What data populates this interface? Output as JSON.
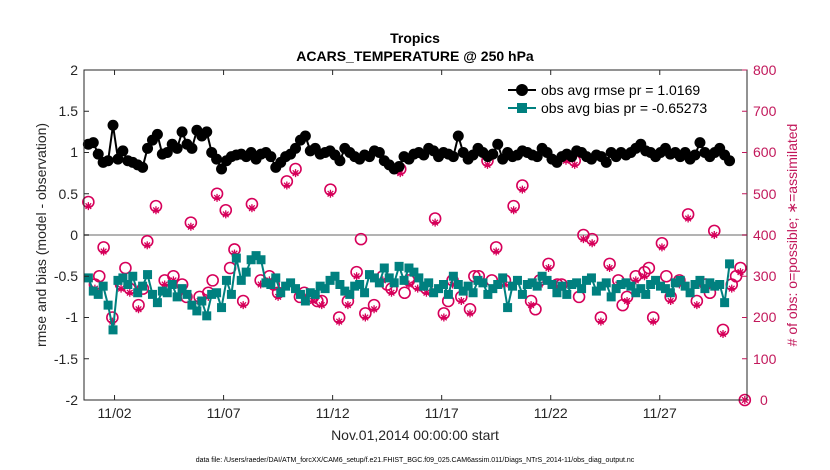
{
  "chart_data": {
    "type": "line",
    "title": "Tropics",
    "subtitle": "ACARS_TEMPERATURE @ 250 hPa",
    "xlabel": "Nov.01,2014 00:00:00 start",
    "ylabel_left": "rmse and bias (model - observation)",
    "ylabel_right": "# of obs: o=possible; ∗=assimilated",
    "footnote": "data file: /Users/raeder/DAI/ATM_forcXX/CAM6_setup/f.e21.FHIST_BGC.f09_025.CAM6assim.011/Diags_NTrS_2014-11/obs_diag_output.nc",
    "xlim": [
      0.6,
      31.0
    ],
    "ylim_left": [
      -2,
      2
    ],
    "ylim_right": [
      0,
      800
    ],
    "x_ticks": [
      2,
      7,
      12,
      17,
      22,
      27
    ],
    "x_tick_labels": [
      "11/02",
      "11/07",
      "11/12",
      "11/17",
      "11/22",
      "11/27"
    ],
    "y_left_ticks": [
      "2",
      "1.5",
      "1",
      "0.5",
      "0",
      "-0.5",
      "-1",
      "-1.5",
      "-2"
    ],
    "y_right_ticks": [
      "800",
      "700",
      "600",
      "500",
      "400",
      "300",
      "200",
      "100",
      "0"
    ],
    "legend": {
      "placement": "top-right",
      "entries": [
        "obs avg rmse pr = 1.0169",
        "obs avg bias pr = -0.65273"
      ]
    },
    "colors": {
      "rmse": "#000000",
      "bias": "#00807f",
      "nobs": "#d6005a",
      "zero_line": "#b3b3b3",
      "right_axis": "#c2185b"
    },
    "series": [
      {
        "name": "obs avg rmse pr",
        "axis": "left",
        "values": [
          1.1,
          1.12,
          0.98,
          0.88,
          0.9,
          1.33,
          0.92,
          1.02,
          0.9,
          0.88,
          0.85,
          0.82,
          1.05,
          1.15,
          1.22,
          0.98,
          1.0,
          1.1,
          1.05,
          1.25,
          1.1,
          1.05,
          1.27,
          1.2,
          1.25,
          1.0,
          0.92,
          0.8,
          0.9,
          0.95,
          0.97,
          0.98,
          0.95,
          1.0,
          0.92,
          0.98,
          1.0,
          0.95,
          0.82,
          0.88,
          0.95,
          0.98,
          1.05,
          1.15,
          1.2,
          1.02,
          1.05,
          0.98,
          1.0,
          1.02,
          0.97,
          0.9,
          1.05,
          1.0,
          0.95,
          0.92,
          0.97,
          0.95,
          1.02,
          1.0,
          0.9,
          0.85,
          0.8,
          0.83,
          0.95,
          0.92,
          0.98,
          1.0,
          0.97,
          1.05,
          1.02,
          0.95,
          1.0,
          0.98,
          0.95,
          1.2,
          1.0,
          0.92,
          0.97,
          1.05,
          1.0,
          0.95,
          0.98,
          1.1,
          0.92,
          1.0,
          0.95,
          0.97,
          1.02,
          1.0,
          0.97,
          0.95,
          1.05,
          1.0,
          0.92,
          0.88,
          0.95,
          0.98,
          0.95,
          1.02,
          1.0,
          0.95,
          0.92,
          0.97,
          0.95,
          0.88,
          1.0,
          0.95,
          1.0,
          0.97,
          1.0,
          1.05,
          1.1,
          1.02,
          1.0,
          0.95,
          1.0,
          1.05,
          0.98,
          1.0,
          0.95,
          1.0,
          0.92,
          0.97,
          1.12,
          1.0,
          0.95,
          1.0,
          1.05,
          0.97,
          0.9
        ]
      },
      {
        "name": "obs avg bias pr",
        "axis": "left",
        "values": [
          -0.52,
          -0.68,
          -0.72,
          -0.62,
          -0.85,
          -1.15,
          -0.55,
          -0.52,
          -0.6,
          -0.5,
          -0.7,
          -0.62,
          -0.48,
          -0.72,
          -0.82,
          -0.68,
          -0.7,
          -0.6,
          -0.75,
          -0.65,
          -0.72,
          -0.85,
          -0.92,
          -0.8,
          -0.98,
          -0.72,
          -0.7,
          -0.88,
          -0.55,
          -0.72,
          -0.28,
          -0.55,
          -0.45,
          -0.3,
          -0.25,
          -0.3,
          -0.58,
          -0.6,
          -0.52,
          -0.7,
          -0.62,
          -0.58,
          -0.65,
          -0.72,
          -0.8,
          -0.7,
          -0.72,
          -0.62,
          -0.65,
          -0.55,
          -0.5,
          -0.6,
          -0.68,
          -0.72,
          -0.62,
          -0.6,
          -0.7,
          -0.48,
          -0.52,
          -0.58,
          -0.4,
          -0.52,
          -0.58,
          -0.38,
          -0.55,
          -0.4,
          -0.45,
          -0.52,
          -0.62,
          -0.58,
          -0.7,
          -0.65,
          -0.6,
          -0.72,
          -0.5,
          -0.6,
          -0.68,
          -0.62,
          -0.7,
          -0.55,
          -0.58,
          -0.72,
          -0.65,
          -0.6,
          -0.52,
          -0.88,
          -0.62,
          -0.55,
          -0.72,
          -0.6,
          -0.58,
          -0.62,
          -0.5,
          -0.55,
          -0.6,
          -0.7,
          -0.62,
          -0.72,
          -0.6,
          -0.58,
          -0.65,
          -0.55,
          -0.52,
          -0.68,
          -0.62,
          -0.58,
          -0.75,
          -0.65,
          -0.6,
          -0.58,
          -0.62,
          -0.7,
          -0.65,
          -0.72,
          -0.6,
          -0.55,
          -0.62,
          -0.65,
          -0.7,
          -0.58,
          -0.55,
          -0.62,
          -0.7,
          -0.6,
          -0.55,
          -0.65,
          -0.58,
          -0.62,
          -0.6,
          -0.82,
          -0.35
        ]
      },
      {
        "name": "# obs possible (o)",
        "axis": "right",
        "x": [
          0.8,
          1.1,
          1.5,
          1.9,
          2.3,
          2.7,
          3.1,
          3.5,
          3.9,
          4.3,
          4.7,
          5.1,
          5.5,
          5.9,
          6.3,
          6.7,
          7.1,
          7.5,
          7.9,
          8.3,
          8.7,
          9.1,
          9.5,
          9.9,
          10.3,
          10.7,
          11.1,
          11.5,
          11.9,
          12.3,
          12.7,
          13.1,
          13.5,
          13.9,
          14.3,
          14.7,
          15.1,
          15.5,
          15.9,
          16.3,
          16.7,
          17.1,
          17.5,
          17.9,
          18.3,
          18.7,
          19.1,
          19.5,
          19.9,
          20.3,
          20.7,
          21.1,
          21.5,
          21.9,
          22.3,
          22.7,
          23.1,
          23.5,
          23.9,
          24.3,
          24.7,
          25.1,
          25.5,
          25.9,
          26.3,
          26.7,
          27.1,
          27.5,
          27.9,
          28.3,
          28.7,
          29.1,
          29.5,
          29.9,
          30.3,
          30.7,
          30.9,
          1.3,
          3.3,
          5.3,
          7.3,
          9.3,
          11.3,
          13.3,
          15.3,
          17.3,
          19.3,
          21.3,
          23.3,
          25.3,
          27.3,
          29.3,
          2.5,
          6.5,
          10.5,
          14.5,
          18.5,
          22.5,
          26.5,
          30.5
        ],
        "values": [
          480,
          280,
          370,
          200,
          280,
          270,
          230,
          385,
          470,
          290,
          300,
          280,
          430,
          250,
          260,
          500,
          460,
          365,
          240,
          475,
          290,
          300,
          260,
          530,
          560,
          260,
          250,
          240,
          510,
          200,
          240,
          310,
          210,
          230,
          300,
          270,
          560,
          290,
          280,
          270,
          440,
          210,
          290,
          250,
          220,
          300,
          580,
          370,
          290,
          470,
          520,
          240,
          290,
          330,
          280,
          590,
          580,
          400,
          390,
          200,
          330,
          290,
          250,
          300,
          310,
          200,
          380,
          250,
          290,
          450,
          240,
          280,
          410,
          170,
          280,
          320,
          0,
          300,
          270,
          250,
          320,
          280,
          240,
          390,
          260,
          240,
          290,
          220,
          250,
          230,
          300,
          260,
          320,
          290,
          250,
          280,
          300,
          280,
          320,
          300
        ]
      },
      {
        "name": "# obs assimilated (*)",
        "axis": "right",
        "x": [
          0.8,
          1.1,
          1.5,
          1.9,
          2.3,
          2.7,
          3.1,
          3.5,
          3.9,
          4.3,
          4.7,
          5.1,
          5.5,
          5.9,
          6.3,
          6.7,
          7.1,
          7.5,
          7.9,
          8.3,
          8.7,
          9.1,
          9.5,
          9.9,
          10.3,
          10.7,
          11.1,
          11.5,
          11.9,
          12.3,
          12.7,
          13.1,
          13.5,
          13.9,
          14.3,
          14.7,
          15.1,
          15.5,
          15.9,
          16.3,
          16.7,
          17.1,
          17.5,
          17.9,
          18.3,
          18.7,
          19.1,
          19.5,
          19.9,
          20.3,
          20.7,
          21.1,
          21.5,
          21.9,
          22.3,
          22.7,
          23.1,
          23.5,
          23.9,
          24.3,
          24.7,
          25.1,
          25.5,
          25.9,
          26.3,
          26.7,
          27.1,
          27.5,
          27.9,
          28.3,
          28.7,
          29.1,
          29.5,
          29.9,
          30.3,
          30.7,
          30.9
        ],
        "values": [
          470,
          270,
          360,
          190,
          270,
          260,
          220,
          375,
          460,
          280,
          290,
          270,
          420,
          240,
          250,
          490,
          450,
          355,
          230,
          465,
          280,
          290,
          250,
          520,
          550,
          250,
          240,
          230,
          500,
          190,
          230,
          300,
          200,
          220,
          290,
          260,
          550,
          280,
          270,
          260,
          430,
          200,
          280,
          240,
          210,
          290,
          570,
          360,
          280,
          460,
          510,
          230,
          280,
          320,
          270,
          580,
          570,
          390,
          380,
          190,
          320,
          280,
          240,
          290,
          300,
          190,
          370,
          240,
          280,
          440,
          230,
          270,
          400,
          160,
          270,
          310,
          0
        ]
      }
    ]
  }
}
